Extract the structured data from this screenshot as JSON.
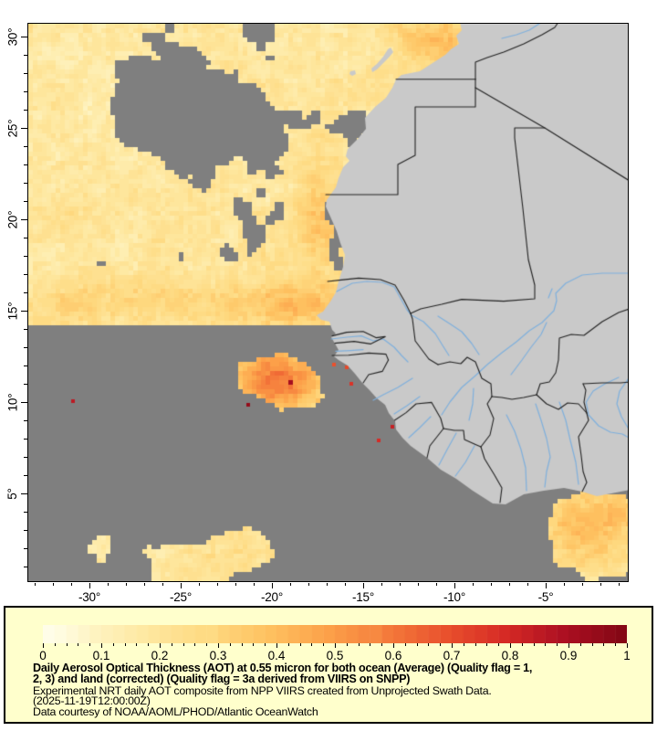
{
  "map": {
    "x_axis": {
      "ticks": [
        {
          "value": -30,
          "label": "-30°"
        },
        {
          "value": -25,
          "label": "-25°"
        },
        {
          "value": -20,
          "label": "-20°"
        },
        {
          "value": -15,
          "label": "-15°"
        },
        {
          "value": -10,
          "label": "-10°"
        },
        {
          "value": -5,
          "label": "-5°"
        }
      ],
      "minor_values": [
        -33,
        -32,
        -31,
        -29,
        -28,
        -27,
        -26,
        -24,
        -23,
        -22,
        -21,
        -19,
        -18,
        -17,
        -16,
        -14,
        -13,
        -12,
        -11,
        -9,
        -8,
        -7,
        -6,
        -4,
        -3,
        -2,
        -1
      ]
    },
    "y_axis": {
      "ticks": [
        {
          "value": 30,
          "label": "30°"
        },
        {
          "value": 25,
          "label": "25°"
        },
        {
          "value": 20,
          "label": "20°"
        },
        {
          "value": 15,
          "label": "15°"
        },
        {
          "value": 10,
          "label": "10°"
        },
        {
          "value": 5,
          "label": "5°"
        }
      ],
      "minor_values": [
        29,
        28,
        27,
        26,
        24,
        23,
        22,
        21,
        19,
        18,
        17,
        16,
        14,
        13,
        12,
        11,
        9,
        8,
        7,
        6,
        4,
        3,
        2,
        1
      ]
    },
    "lon_range": [
      -33.35,
      -0.5
    ],
    "lat_range": [
      0.2,
      30.7
    ],
    "colors": {
      "ocean_nodata": "#7f7f7f",
      "land": "#c9c9c9",
      "border": "#222222",
      "river": "#7fb0dd",
      "frame": "#000000"
    }
  },
  "legend": {
    "background": "#ffffcc",
    "tick_labels": [
      "0",
      "0.1",
      "0.2",
      "0.3",
      "0.4",
      "0.5",
      "0.6",
      "0.7",
      "0.8",
      "0.9",
      "1"
    ],
    "tick_values": [
      0,
      0.1,
      0.2,
      0.3,
      0.4,
      0.5,
      0.6,
      0.7,
      0.8,
      0.9,
      1
    ],
    "minor_tick_step": 0.02,
    "value_range": [
      0,
      1
    ],
    "colormap_steps": 50,
    "colormap_stops": [
      [
        0.0,
        "#fffff0"
      ],
      [
        0.05,
        "#fffbdc"
      ],
      [
        0.1,
        "#fef3c0"
      ],
      [
        0.2,
        "#fee69c"
      ],
      [
        0.3,
        "#fed87e"
      ],
      [
        0.4,
        "#fec05f"
      ],
      [
        0.5,
        "#fca049"
      ],
      [
        0.6,
        "#f47a3b"
      ],
      [
        0.7,
        "#e9512d"
      ],
      [
        0.8,
        "#d62a25"
      ],
      [
        0.9,
        "#ad1022"
      ],
      [
        1.0,
        "#850715"
      ]
    ],
    "caption_bold_lines": [
      "Daily Aerosol Optical Thickness (AOT) at 0.55 micron for both ocean (Average) (Quality flag = 1,",
      "2, 3) and land (corrected) (Quality flag = 3a derived from VIIRS on SNPP)"
    ],
    "caption_lines": [
      "Experimental NRT daily AOT composite from NPP VIIRS created from Unprojected Swath Data.",
      "(2025-11-19T12:00:00Z)",
      "Data courtesy of NOAA/AOML/PHOD/Atlantic OceanWatch"
    ]
  }
}
